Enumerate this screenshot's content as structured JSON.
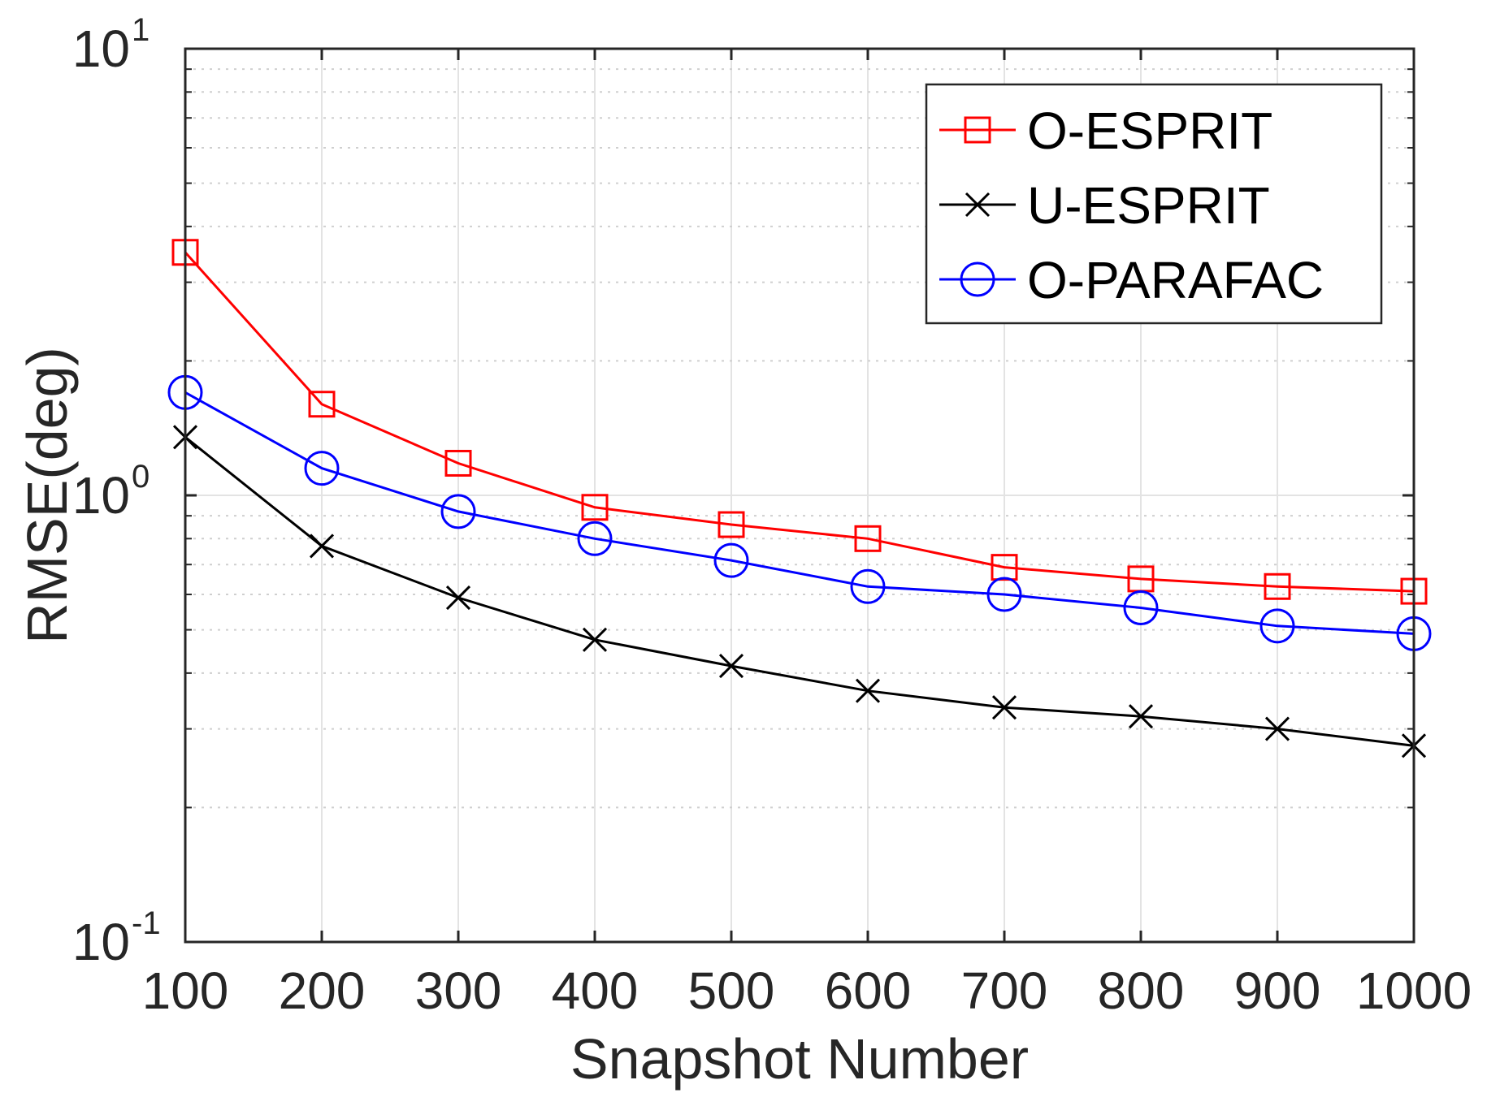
{
  "chart_data": {
    "type": "line",
    "title": "",
    "xlabel": "Snapshot Number",
    "ylabel": "RMSE(deg)",
    "x": [
      100,
      200,
      300,
      400,
      500,
      600,
      700,
      800,
      900,
      1000
    ],
    "xlim": [
      100,
      1000
    ],
    "ylim": [
      0.1,
      10
    ],
    "yscale": "log",
    "grid": true,
    "legend_position": "top-right",
    "x_tick_labels": [
      "100",
      "200",
      "300",
      "400",
      "500",
      "600",
      "700",
      "800",
      "900",
      "1000"
    ],
    "y_ticks": [
      {
        "value": 10,
        "base": "10",
        "exponent": "1"
      },
      {
        "value": 1,
        "base": "10",
        "exponent": "0"
      },
      {
        "value": 0.1,
        "base": "10",
        "exponent": "-1"
      }
    ],
    "series": [
      {
        "name": "O-ESPRIT",
        "color": "#ff0000",
        "marker": "square",
        "values": [
          3.5,
          1.6,
          1.18,
          0.94,
          0.86,
          0.8,
          0.69,
          0.65,
          0.625,
          0.61
        ]
      },
      {
        "name": "U-ESPRIT",
        "color": "#000000",
        "marker": "x",
        "values": [
          1.35,
          0.77,
          0.59,
          0.475,
          0.415,
          0.365,
          0.335,
          0.32,
          0.3,
          0.275
        ]
      },
      {
        "name": "O-PARAFAC",
        "color": "#0000ff",
        "marker": "circle",
        "values": [
          1.7,
          1.15,
          0.92,
          0.8,
          0.715,
          0.625,
          0.6,
          0.56,
          0.51,
          0.49
        ]
      }
    ]
  }
}
